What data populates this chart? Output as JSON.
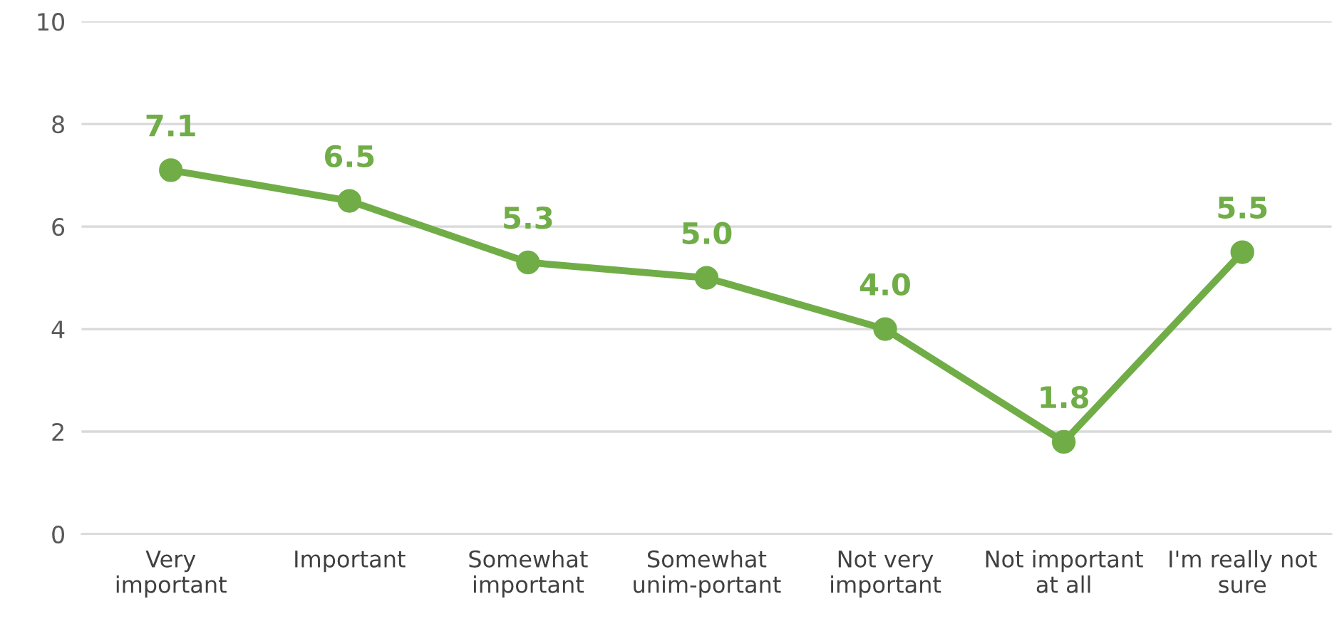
{
  "chart_data": {
    "type": "line",
    "categories": [
      "Very\nimportant",
      "Important",
      "Somewhat\nimportant",
      "Somewhat\nunim-portant",
      "Not very\nimportant",
      "Not important\nat all",
      "I'm really not\nsure"
    ],
    "series": [
      {
        "color": "#70ad47",
        "values": [
          7.1,
          6.5,
          5.3,
          5.0,
          4.0,
          1.8,
          5.5
        ],
        "value_labels": [
          "7.1",
          "6.5",
          "5.3",
          "5.0",
          "4.0",
          "1.8",
          "5.5"
        ]
      }
    ],
    "ylim": [
      0,
      10
    ],
    "yticks": [
      0,
      2,
      4,
      6,
      8,
      10
    ],
    "grid": "y",
    "marker": "circle",
    "line_style": "solid"
  }
}
